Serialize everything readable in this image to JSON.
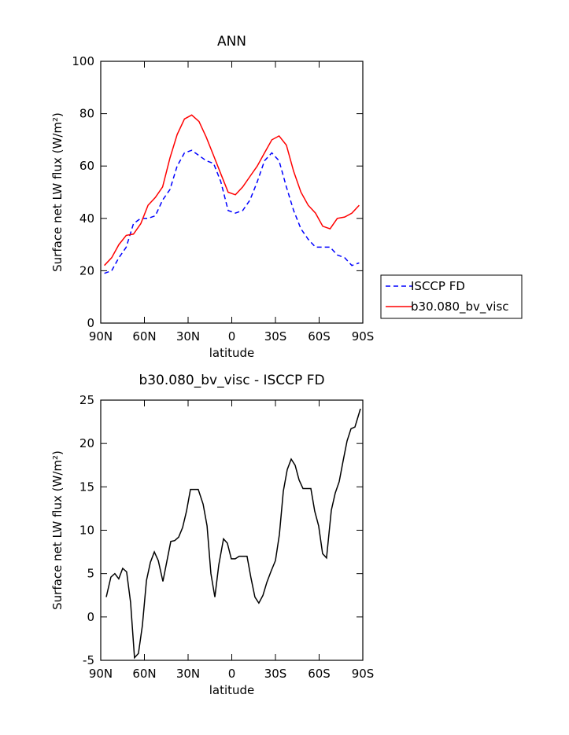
{
  "chart_data": [
    {
      "type": "line",
      "title": "ANN",
      "x_label": "latitude",
      "y_label": "Surface net LW flux (W/m²)",
      "x": [
        87.5,
        82.5,
        77.5,
        72.5,
        67.5,
        62.5,
        57.5,
        52.5,
        47.5,
        42.5,
        37.5,
        32.5,
        27.5,
        22.5,
        17.5,
        12.5,
        7.5,
        2.5,
        -2.5,
        -7.5,
        -12.5,
        -17.5,
        -22.5,
        -27.5,
        -32.5,
        -37.5,
        -42.5,
        -47.5,
        -52.5,
        -57.5,
        -62.5,
        -67.5,
        -72.5,
        -77.5,
        -82.5,
        -87.5
      ],
      "series": [
        {
          "name": "ISCCP FD",
          "color": "#0000ff",
          "dash": true,
          "values": [
            19,
            20,
            25,
            29,
            38,
            40,
            40,
            41,
            47,
            51,
            60,
            65,
            66,
            64,
            62,
            61,
            54,
            43,
            42,
            43,
            47,
            54,
            62,
            65,
            62,
            52,
            43,
            36,
            32,
            29,
            29,
            29,
            26,
            25,
            22,
            23
          ]
        },
        {
          "name": "b30.080_bv_visc",
          "color": "#ff0000",
          "dash": false,
          "values": [
            22,
            25,
            30,
            33.5,
            34,
            38,
            45,
            48,
            52,
            63,
            72,
            78,
            79.5,
            77,
            71,
            64,
            57,
            50,
            49,
            52,
            56,
            60,
            65,
            70,
            71.5,
            68,
            58,
            50,
            45,
            42,
            37,
            36,
            40,
            40.5,
            42,
            45
          ]
        }
      ],
      "xlim": [
        90,
        -90
      ],
      "xticks": [
        {
          "value": 90,
          "label": "90N"
        },
        {
          "value": 60,
          "label": "60N"
        },
        {
          "value": 30,
          "label": "30N"
        },
        0,
        {
          "value": -30,
          "label": "30S"
        },
        {
          "value": -60,
          "label": "60S"
        },
        {
          "value": -90,
          "label": "90S"
        }
      ],
      "ylim": [
        0,
        100
      ],
      "yticks": [
        0,
        20,
        40,
        60,
        80,
        100
      ],
      "legend": "right"
    },
    {
      "type": "line",
      "title": "b30.080_bv_visc - ISCCP FD",
      "x_label": "latitude",
      "y_label": "Surface net LW flux (W/m²)",
      "x": [
        86.2,
        83.0,
        80.3,
        77.6,
        74.9,
        72.2,
        69.5,
        66.8,
        64.1,
        61.4,
        58.6,
        55.9,
        53.2,
        50.5,
        47.3,
        44.6,
        41.9,
        39.2,
        36.5,
        33.8,
        31.1,
        28.4,
        23.0,
        19.7,
        17.0,
        14.3,
        11.6,
        8.9,
        5.7,
        3.0,
        0.3,
        -2.4,
        -5.1,
        -10.5,
        -13.2,
        -15.9,
        -18.6,
        -21.4,
        -24.1,
        -26.8,
        -30.0,
        -32.7,
        -35.4,
        -38.1,
        -40.8,
        -43.5,
        -46.2,
        -48.9,
        -54.3,
        -57.0,
        -59.7,
        -62.4,
        -65.1,
        -68.4,
        -71.1,
        -73.8,
        -76.5,
        -79.2,
        -81.9,
        -84.6,
        -88.4
      ],
      "values": [
        2.3,
        4.6,
        5,
        4.4,
        5.6,
        5.2,
        1.7,
        -4.7,
        -4.2,
        -1,
        4.2,
        6.3,
        7.5,
        6.5,
        4.1,
        6.4,
        8.7,
        8.8,
        9.2,
        10.3,
        12.2,
        14.7,
        14.7,
        13,
        10.5,
        5,
        2.3,
        6,
        9,
        8.5,
        6.7,
        6.7,
        7,
        7,
        4.5,
        2.3,
        1.6,
        2.5,
        4,
        5.2,
        6.5,
        9.5,
        14.5,
        17,
        18.2,
        17.5,
        15.8,
        14.8,
        14.8,
        12.2,
        10.5,
        7.3,
        6.8,
        12.3,
        14.3,
        15.6,
        18,
        20.3,
        21.7,
        21.9,
        24
      ],
      "color": "#000000",
      "xlim": [
        90,
        -90
      ],
      "xticks": [
        {
          "value": 90,
          "label": "90N"
        },
        {
          "value": 60,
          "label": "60N"
        },
        {
          "value": 30,
          "label": "30N"
        },
        0,
        {
          "value": -30,
          "label": "30S"
        },
        {
          "value": -60,
          "label": "60S"
        },
        {
          "value": -90,
          "label": "90S"
        }
      ],
      "ylim": [
        -5,
        25
      ],
      "yticks": [
        -5,
        0,
        5,
        10,
        15,
        20,
        25
      ]
    }
  ]
}
